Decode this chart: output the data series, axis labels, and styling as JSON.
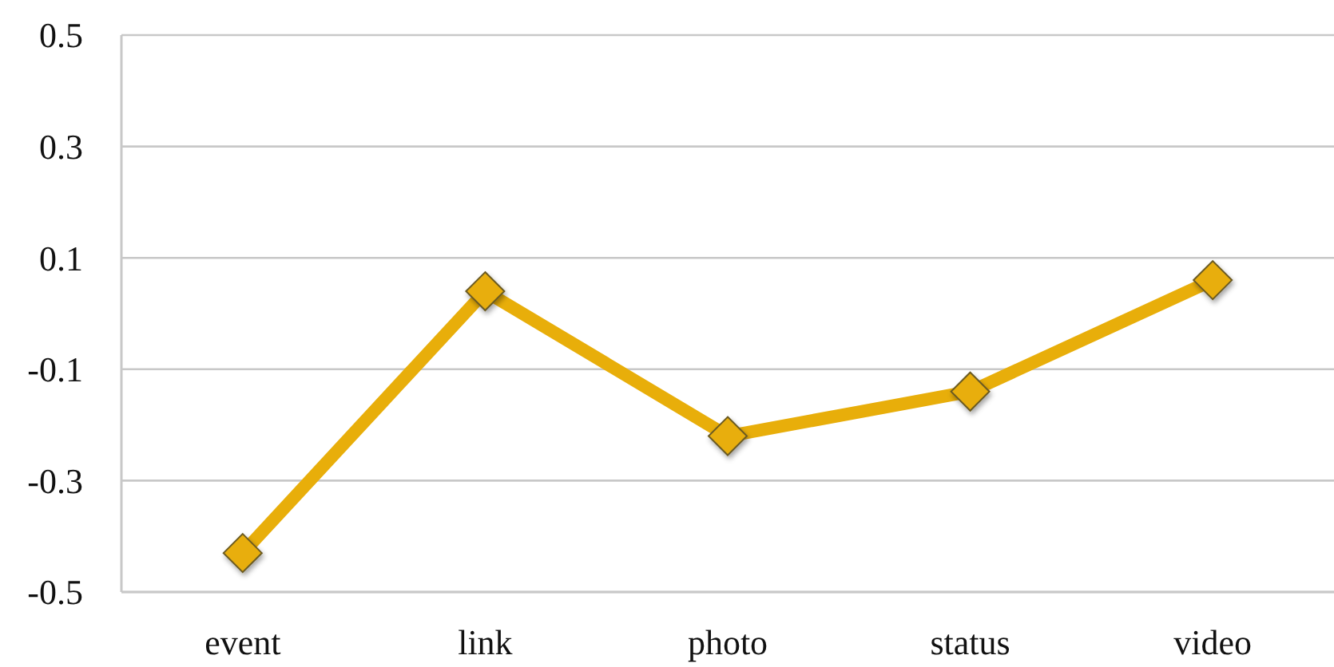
{
  "chart_data": {
    "type": "line",
    "categories": [
      "event",
      "link",
      "photo",
      "status",
      "video"
    ],
    "series": [
      {
        "color": "#e8ae0a",
        "values": [
          -0.43,
          0.04,
          -0.22,
          -0.14,
          0.06
        ]
      }
    ],
    "ylim": [
      -0.5,
      0.5
    ],
    "yticks": [
      -0.5,
      -0.3,
      -0.1,
      0.1,
      0.3,
      0.5
    ],
    "grid": "y",
    "marker": "diamond",
    "line_style": "solid"
  }
}
